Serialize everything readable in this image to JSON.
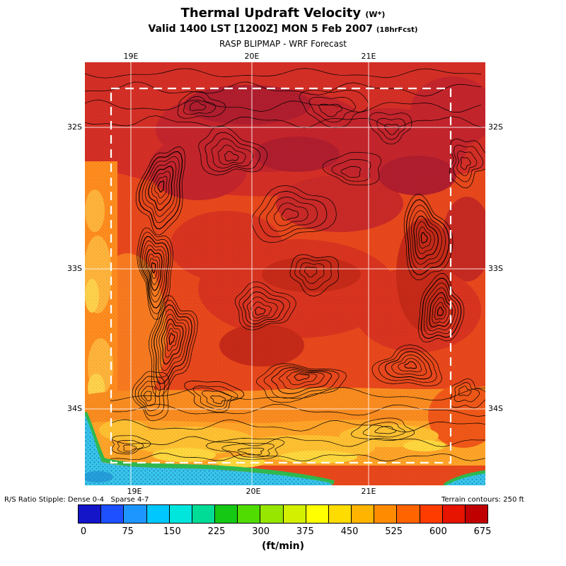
{
  "header": {
    "title": "Thermal Updraft Velocity",
    "title_unit": "(W*)",
    "valid": "Valid 1400 LST [1200Z] MON 5 Feb 2007",
    "fcst": "(18hrFcst)",
    "model": "RASP BLIPMAP - WRF Forecast"
  },
  "axes": {
    "top": [
      "19E",
      "20E",
      "21E"
    ],
    "bottom": [
      "19E",
      "20E",
      "21E"
    ],
    "left": [
      "32S",
      "33S",
      "34S"
    ],
    "right": [
      "32S",
      "33S",
      "34S"
    ]
  },
  "notes": {
    "stipple": "R/S Ratio Stipple: Dense 0-4   Sparse 4-7",
    "terrain": "Terrain contours: 250 ft"
  },
  "chart_data": {
    "type": "heatmap",
    "title": "Thermal Updraft Velocity (W*)",
    "subtitle": "Valid 1400 LST [1200Z] MON 5 Feb 2007 (18hrFcst)",
    "source": "RASP BLIPMAP - WRF Forecast",
    "units": "ft/min",
    "units_label": "(ft/min)",
    "x_ticks": [
      "19E",
      "20E",
      "21E"
    ],
    "y_ticks": [
      "32S",
      "33S",
      "34S"
    ],
    "colorbar": {
      "min": 0,
      "max": 675,
      "tick_step": 75,
      "tick_labels": [
        "0",
        "75",
        "150",
        "225",
        "300",
        "375",
        "450",
        "525",
        "600",
        "675"
      ],
      "colors": [
        "#1414c8",
        "#1e50ff",
        "#1e96ff",
        "#00c8ff",
        "#00e6dc",
        "#00dc96",
        "#14c814",
        "#50dc00",
        "#96e600",
        "#d2f000",
        "#ffff00",
        "#ffdc00",
        "#ffb400",
        "#ff8c00",
        "#ff6400",
        "#ff3c00",
        "#e61400",
        "#c00000"
      ]
    },
    "approx_field_ftmin": {
      "note": "coarse visual estimate of thermal updraft velocity, rows N to S, cols W to E (19E-21.5E, 31.8S-34.5S)",
      "grid": [
        [
          575,
          625,
          640,
          620,
          640,
          650
        ],
        [
          500,
          600,
          610,
          590,
          600,
          625
        ],
        [
          450,
          560,
          570,
          560,
          580,
          590
        ],
        [
          420,
          540,
          550,
          560,
          570,
          550
        ],
        [
          380,
          480,
          500,
          510,
          520,
          480
        ],
        [
          150,
          420,
          440,
          450,
          430,
          100
        ]
      ]
    },
    "annotations": [
      "R/S Ratio Stipple: Dense 0-4 Sparse 4-7",
      "Terrain contours: 250 ft",
      "white dashed rectangle = inner model domain"
    ]
  }
}
